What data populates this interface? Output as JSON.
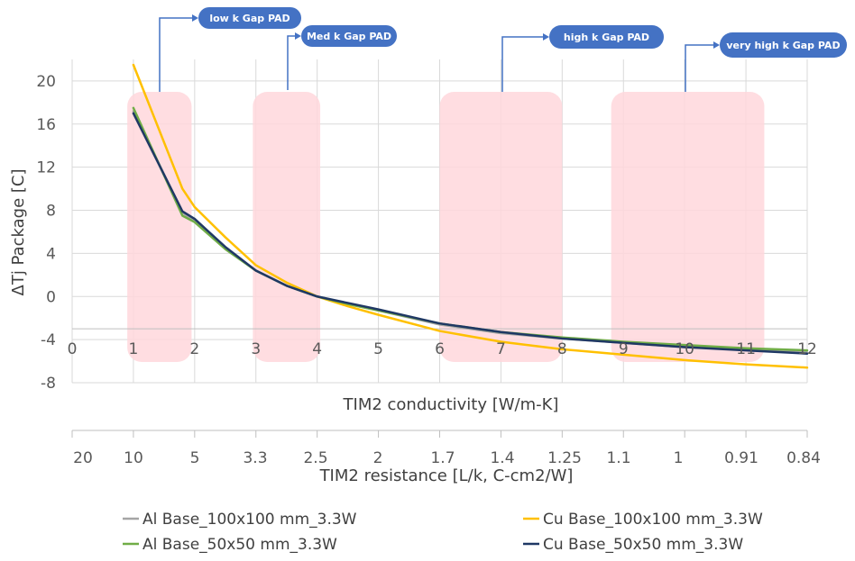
{
  "chart_data": {
    "type": "line",
    "xlabel": "TIM2 conductivity [W/m-K]",
    "ylabel": "ΔTj Package [C]",
    "xlim": [
      0,
      12
    ],
    "ylim": [
      -8,
      22
    ],
    "x_ticks": [
      "0",
      "1",
      "2",
      "3",
      "4",
      "5",
      "6",
      "7",
      "8",
      "9",
      "10",
      "11",
      "12"
    ],
    "y_ticks": [
      "20",
      "16",
      "12",
      "8",
      "4",
      "0",
      "-4",
      "-8"
    ],
    "secondary_axis": {
      "label": "TIM2 resistance [L/k,  C-cm2/W]",
      "ticks": [
        "20",
        "10",
        "5",
        "3.3",
        "2.5",
        "2",
        "1.7",
        "1.4",
        "1.25",
        "1.1",
        "1",
        "0.91",
        "0.84"
      ]
    },
    "series": [
      {
        "name": "Al Base_100x100 mm_3.3W",
        "color": "#a5a5a5",
        "x": [
          1,
          1.8,
          2,
          2.5,
          3,
          3.5,
          4,
          4.5,
          5,
          6,
          7,
          8,
          9,
          10,
          11,
          12
        ],
        "y": [
          17.2,
          7.8,
          7.0,
          4.5,
          2.4,
          1.0,
          0.0,
          -0.7,
          -1.3,
          -2.6,
          -3.4,
          -3.9,
          -4.3,
          -4.7,
          -4.9,
          -5.2
        ]
      },
      {
        "name": "Cu Base_100x100 mm_3.3W",
        "color": "#ffc000",
        "x": [
          1,
          1.8,
          2,
          2.5,
          3,
          3.5,
          4,
          4.5,
          5,
          6,
          7,
          8,
          9,
          10,
          11,
          12
        ],
        "y": [
          21.5,
          10.0,
          8.3,
          5.5,
          2.9,
          1.3,
          0.0,
          -0.9,
          -1.7,
          -3.2,
          -4.2,
          -4.9,
          -5.4,
          -5.9,
          -6.3,
          -6.6
        ]
      },
      {
        "name": "Al  Base_50x50 mm_3.3W",
        "color": "#70ad47",
        "x": [
          1,
          1.8,
          2,
          2.5,
          3,
          3.5,
          4,
          4.5,
          5,
          6,
          7,
          8,
          9,
          10,
          11,
          12
        ],
        "y": [
          17.5,
          7.5,
          6.9,
          4.4,
          2.4,
          1.0,
          0.0,
          -0.7,
          -1.3,
          -2.5,
          -3.3,
          -3.8,
          -4.2,
          -4.5,
          -4.8,
          -5.0
        ]
      },
      {
        "name": "Cu Base_50x50 mm_3.3W",
        "color": "#1f3864",
        "x": [
          1,
          1.8,
          2,
          2.5,
          3,
          3.5,
          4,
          4.5,
          5,
          6,
          7,
          8,
          9,
          10,
          11,
          12
        ],
        "y": [
          17.0,
          7.9,
          7.2,
          4.6,
          2.4,
          1.0,
          0.0,
          -0.6,
          -1.2,
          -2.5,
          -3.3,
          -3.9,
          -4.3,
          -4.7,
          -5.0,
          -5.3
        ]
      }
    ],
    "highlight_bands": [
      {
        "label": "low k Gap PAD",
        "x_start": 0.9,
        "x_end": 1.95
      },
      {
        "label": "Med k Gap PAD",
        "x_start": 2.95,
        "x_end": 4.05
      },
      {
        "label": "high k Gap PAD",
        "x_start": 6.0,
        "x_end": 8.0
      },
      {
        "label": "very high k Gap PAD",
        "x_start": 8.8,
        "x_end": 11.3
      }
    ],
    "legend_position": "bottom",
    "grid": true
  }
}
